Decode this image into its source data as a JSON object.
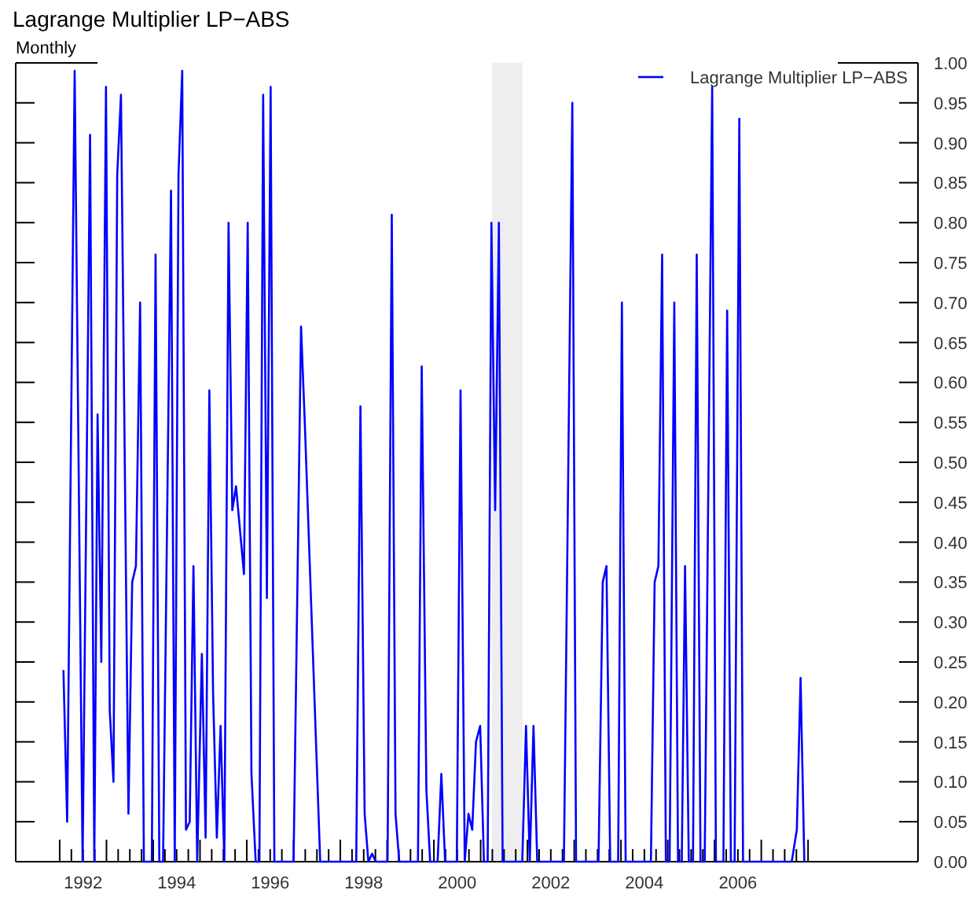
{
  "chart_data": {
    "type": "line",
    "title": "Lagrange Multiplier LP−ABS",
    "subtitle": "Monthly",
    "x": [
      1992.08,
      1992.16,
      1992.32,
      1992.49,
      1992.65,
      1992.74,
      1992.81,
      1992.89,
      1992.99,
      1993.07,
      1993.15,
      1993.23,
      1993.31,
      1993.47,
      1993.55,
      1993.63,
      1993.72,
      1993.8,
      1993.97,
      1994.05,
      1994.13,
      1994.21,
      1994.38,
      1994.46,
      1994.54,
      1994.62,
      1994.7,
      1994.78,
      1994.86,
      1994.94,
      1995.04,
      1995.12,
      1995.2,
      1995.28,
      1995.36,
      1995.44,
      1995.52,
      1995.61,
      1995.69,
      1995.77,
      1995.94,
      1996.02,
      1996.1,
      1996.19,
      1996.27,
      1996.35,
      1996.43,
      1996.51,
      1996.59,
      1997.0,
      1997.16,
      1997.24,
      1997.57,
      1998.34,
      1998.43,
      1998.52,
      1998.6,
      1998.68,
      1998.76,
      1999.01,
      1999.1,
      1999.18,
      1999.26,
      1999.66,
      1999.74,
      1999.84,
      1999.92,
      2000.08,
      2000.16,
      2000.24,
      2000.49,
      2000.57,
      2000.66,
      2000.74,
      2000.82,
      2000.9,
      2000.99,
      2001.07,
      2001.15,
      2001.23,
      2001.31,
      2001.39,
      2001.47,
      2001.89,
      2001.97,
      2002.05,
      2002.13,
      2002.21,
      2002.78,
      2002.96,
      2003.04,
      2003.52,
      2003.61,
      2003.69,
      2003.77,
      2003.94,
      2004.02,
      2004.1,
      2004.64,
      2004.72,
      2004.8,
      2004.88,
      2004.96,
      2005.04,
      2005.14,
      2005.22,
      2005.3,
      2005.37,
      2005.45,
      2005.54,
      2005.62,
      2005.7,
      2005.79,
      2005.95,
      2006.03,
      2006.19,
      2006.27,
      2006.35,
      2006.43,
      2006.53,
      2006.61,
      2007.65,
      2007.76,
      2007.84,
      2007.92
    ],
    "series": [
      {
        "name": "Lagrange Multiplier LP−ABS",
        "color": "#0000ff",
        "values": [
          0.24,
          0.05,
          0.99,
          0,
          0.91,
          0,
          0.56,
          0.25,
          0.97,
          0.19,
          0.1,
          0.86,
          0.96,
          0.06,
          0.35,
          0.37,
          0.7,
          0,
          0,
          0.76,
          0,
          0,
          0.84,
          0,
          0.86,
          0.99,
          0.04,
          0.05,
          0.37,
          0,
          0.26,
          0.03,
          0.59,
          0.21,
          0.03,
          0.17,
          0,
          0.8,
          0.44,
          0.47,
          0.36,
          0.8,
          0.11,
          0,
          0,
          0.96,
          0.33,
          0.97,
          0,
          0,
          0.67,
          0.55,
          0,
          0,
          0.57,
          0.06,
          0,
          0.01,
          0,
          0,
          0.81,
          0.06,
          0,
          0,
          0.62,
          0.09,
          0,
          0,
          0.11,
          0,
          0,
          0.59,
          0,
          0.06,
          0.04,
          0.15,
          0.17,
          0,
          0,
          0.8,
          0.44,
          0.8,
          0,
          0,
          0.17,
          0,
          0.17,
          0,
          0,
          0.95,
          0,
          0,
          0.35,
          0.37,
          0,
          0,
          0.7,
          0,
          0,
          0.35,
          0.37,
          0.76,
          0,
          0,
          0.7,
          0,
          0,
          0.37,
          0,
          0,
          0.76,
          0,
          0,
          0.97,
          0,
          0,
          0.69,
          0,
          0,
          0.93,
          0,
          0,
          0.04,
          0.23,
          0
        ]
      }
    ],
    "xlim": [
      1991.06,
      2010.35
    ],
    "xticks": [
      {
        "value": 1992,
        "label": null
      },
      {
        "value": 1992.25,
        "label": null
      },
      {
        "value": 1992.5,
        "label": "1992"
      },
      {
        "value": 1992.75,
        "label": null
      },
      {
        "value": 1993,
        "label": null
      },
      {
        "value": 1993.25,
        "label": null
      },
      {
        "value": 1993.5,
        "label": null
      },
      {
        "value": 1993.75,
        "label": null
      },
      {
        "value": 1994,
        "label": null
      },
      {
        "value": 1994.25,
        "label": null
      },
      {
        "value": 1994.5,
        "label": "1994"
      },
      {
        "value": 1994.75,
        "label": null
      },
      {
        "value": 1995,
        "label": null
      },
      {
        "value": 1995.25,
        "label": null
      },
      {
        "value": 1995.5,
        "label": null
      },
      {
        "value": 1995.75,
        "label": null
      },
      {
        "value": 1996,
        "label": null
      },
      {
        "value": 1996.25,
        "label": null
      },
      {
        "value": 1996.5,
        "label": "1996"
      },
      {
        "value": 1996.75,
        "label": null
      },
      {
        "value": 1997,
        "label": null
      },
      {
        "value": 1997.25,
        "label": null
      },
      {
        "value": 1997.5,
        "label": null
      },
      {
        "value": 1997.75,
        "label": null
      },
      {
        "value": 1998,
        "label": null
      },
      {
        "value": 1998.25,
        "label": null
      },
      {
        "value": 1998.5,
        "label": "1998"
      },
      {
        "value": 1998.75,
        "label": null
      },
      {
        "value": 1999,
        "label": null
      },
      {
        "value": 1999.25,
        "label": null
      },
      {
        "value": 1999.5,
        "label": null
      },
      {
        "value": 1999.75,
        "label": null
      },
      {
        "value": 2000,
        "label": null
      },
      {
        "value": 2000.25,
        "label": null
      },
      {
        "value": 2000.5,
        "label": "2000"
      },
      {
        "value": 2000.75,
        "label": null
      },
      {
        "value": 2001,
        "label": null
      },
      {
        "value": 2001.25,
        "label": null
      },
      {
        "value": 2001.5,
        "label": null
      },
      {
        "value": 2001.75,
        "label": null
      },
      {
        "value": 2002,
        "label": null
      },
      {
        "value": 2002.25,
        "label": null
      },
      {
        "value": 2002.5,
        "label": "2002"
      },
      {
        "value": 2002.75,
        "label": null
      },
      {
        "value": 2003,
        "label": null
      },
      {
        "value": 2003.25,
        "label": null
      },
      {
        "value": 2003.5,
        "label": null
      },
      {
        "value": 2003.75,
        "label": null
      },
      {
        "value": 2004,
        "label": null
      },
      {
        "value": 2004.25,
        "label": null
      },
      {
        "value": 2004.5,
        "label": "2004"
      },
      {
        "value": 2004.75,
        "label": null
      },
      {
        "value": 2005,
        "label": null
      },
      {
        "value": 2005.25,
        "label": null
      },
      {
        "value": 2005.5,
        "label": null
      },
      {
        "value": 2005.75,
        "label": null
      },
      {
        "value": 2006,
        "label": null
      },
      {
        "value": 2006.25,
        "label": null
      },
      {
        "value": 2006.5,
        "label": "2006"
      },
      {
        "value": 2006.75,
        "label": null
      },
      {
        "value": 2007,
        "label": null
      },
      {
        "value": 2007.25,
        "label": null
      },
      {
        "value": 2007.5,
        "label": null
      },
      {
        "value": 2007.75,
        "label": null
      },
      {
        "value": 2008,
        "label": null
      }
    ],
    "ylim": [
      0,
      1
    ],
    "yticks": [
      {
        "value": 0,
        "label": "0.00"
      },
      {
        "value": 0.05,
        "label": "0.05"
      },
      {
        "value": 0.1,
        "label": "0.10"
      },
      {
        "value": 0.15,
        "label": "0.15"
      },
      {
        "value": 0.2,
        "label": "0.20"
      },
      {
        "value": 0.25,
        "label": "0.25"
      },
      {
        "value": 0.3,
        "label": "0.30"
      },
      {
        "value": 0.35,
        "label": "0.35"
      },
      {
        "value": 0.4,
        "label": "0.40"
      },
      {
        "value": 0.45,
        "label": "0.45"
      },
      {
        "value": 0.5,
        "label": "0.50"
      },
      {
        "value": 0.55,
        "label": "0.55"
      },
      {
        "value": 0.6,
        "label": "0.60"
      },
      {
        "value": 0.65,
        "label": "0.65"
      },
      {
        "value": 0.7,
        "label": "0.70"
      },
      {
        "value": 0.75,
        "label": "0.75"
      },
      {
        "value": 0.8,
        "label": "0.80"
      },
      {
        "value": 0.85,
        "label": "0.85"
      },
      {
        "value": 0.9,
        "label": "0.90"
      },
      {
        "value": 0.95,
        "label": "0.95"
      },
      {
        "value": 1,
        "label": "1.00"
      }
    ],
    "bands": [
      {
        "axis": "x",
        "from": 2001.24,
        "to": 2001.89,
        "color": "#eeeeee"
      }
    ],
    "legend": "top right",
    "grid": false,
    "line_style": "solid",
    "marker": "none"
  }
}
